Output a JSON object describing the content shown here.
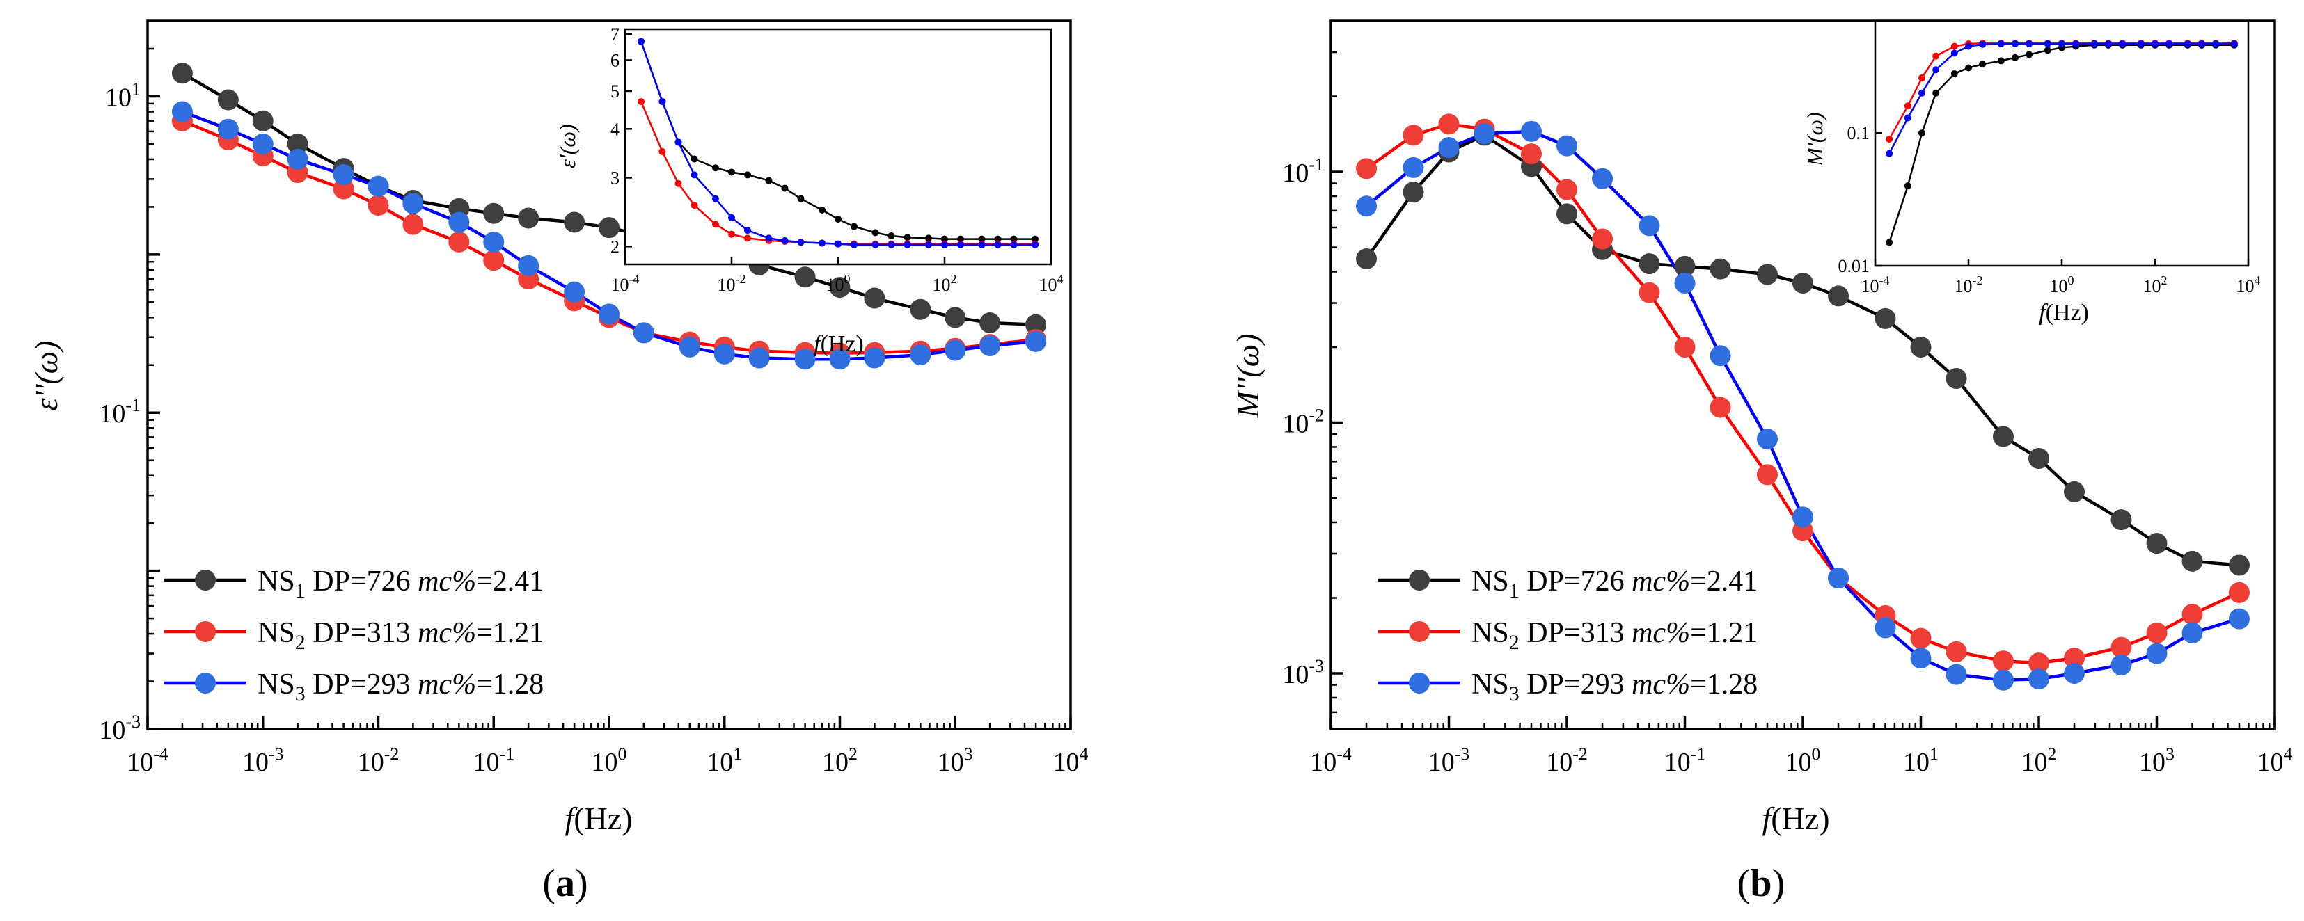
{
  "colors": {
    "ns1": "#3f3f3f",
    "ns2": "#ef3e36",
    "ns3": "#2f6fe0",
    "ns1_line": "#000000",
    "ns2_line": "#ff0000",
    "ns3_line": "#0000ff"
  },
  "chart_data": [
    {
      "id": "a",
      "type": "line",
      "panel_label": "a",
      "xlabel_italic": "f",
      "xlabel_rest": "(Hz)",
      "ylabel": "ε''(ω)",
      "xscale": "log",
      "yscale": "log",
      "xlim": [
        0.0001,
        10000
      ],
      "ylim": [
        0.001,
        30
      ],
      "x_ticks": [
        {
          "base": "10",
          "exp": "-4"
        },
        {
          "base": "10",
          "exp": "-3"
        },
        {
          "base": "10",
          "exp": "-2"
        },
        {
          "base": "10",
          "exp": "-1"
        },
        {
          "base": "10",
          "exp": "0"
        },
        {
          "base": "10",
          "exp": "1"
        },
        {
          "base": "10",
          "exp": "2"
        },
        {
          "base": "10",
          "exp": "3"
        },
        {
          "base": "10",
          "exp": "4"
        }
      ],
      "y_ticks": [
        {
          "base": "10",
          "exp": "-3"
        },
        {
          "base": "10",
          "exp": "-1"
        },
        {
          "base": "10",
          "exp": "1"
        }
      ],
      "legend_position": "bottom-left",
      "series": [
        {
          "name": "NS",
          "sub": "1",
          "label_mid": " DP=726 ",
          "label_ital": "mc%",
          "label_end": "=2.41",
          "x": [
            0.0002,
            0.0005,
            0.001,
            0.002,
            0.005,
            0.01,
            0.02,
            0.05,
            0.1,
            0.2,
            0.5,
            1,
            2,
            5,
            10,
            20,
            50,
            100,
            200,
            500,
            1000,
            2000,
            5000
          ],
          "values": [
            14,
            9.5,
            7,
            5,
            3.5,
            2.7,
            2.2,
            1.95,
            1.82,
            1.7,
            1.6,
            1.48,
            1.32,
            1.16,
            1.0,
            0.86,
            0.72,
            0.62,
            0.53,
            0.45,
            0.4,
            0.37,
            0.36
          ]
        },
        {
          "name": "NS",
          "sub": "2",
          "label_mid": " DP=313 ",
          "label_ital": "mc%",
          "label_end": "=1.21",
          "x": [
            0.0002,
            0.0005,
            0.001,
            0.002,
            0.005,
            0.01,
            0.02,
            0.05,
            0.1,
            0.2,
            0.5,
            1,
            2,
            5,
            10,
            20,
            50,
            100,
            200,
            500,
            1000,
            2000,
            5000
          ],
          "values": [
            7,
            5.3,
            4.2,
            3.3,
            2.6,
            2.05,
            1.55,
            1.2,
            0.92,
            0.7,
            0.51,
            0.4,
            0.32,
            0.28,
            0.26,
            0.245,
            0.24,
            0.238,
            0.24,
            0.245,
            0.255,
            0.27,
            0.29
          ]
        },
        {
          "name": "NS",
          "sub": "3",
          "label_mid": " DP=293 ",
          "label_ital": "mc%",
          "label_end": "=1.28",
          "x": [
            0.0002,
            0.0005,
            0.001,
            0.002,
            0.005,
            0.01,
            0.02,
            0.05,
            0.1,
            0.2,
            0.5,
            1,
            2,
            5,
            10,
            20,
            50,
            100,
            200,
            500,
            1000,
            2000,
            5000
          ],
          "values": [
            8,
            6.2,
            5,
            4,
            3.2,
            2.7,
            2.1,
            1.6,
            1.2,
            0.85,
            0.58,
            0.42,
            0.32,
            0.26,
            0.235,
            0.222,
            0.218,
            0.218,
            0.222,
            0.232,
            0.248,
            0.265,
            0.282
          ]
        }
      ],
      "inset": {
        "type": "line",
        "xlabel_italic": "f",
        "xlabel_rest": "(Hz)",
        "ylabel": "ε'(ω)",
        "xlim": [
          0.0001,
          10000
        ],
        "ylim": [
          1.8,
          7.2
        ],
        "x_ticks": [
          {
            "base": "10",
            "exp": "-4"
          },
          {
            "base": "10",
            "exp": "-2"
          },
          {
            "base": "10",
            "exp": "0"
          },
          {
            "base": "10",
            "exp": "2"
          },
          {
            "base": "10",
            "exp": "4"
          }
        ],
        "y_ticks": [
          "2",
          "3",
          "4",
          "5",
          "6",
          "7"
        ],
        "series": [
          {
            "x": [
              0.0002,
              0.0005,
              0.001,
              0.002,
              0.005,
              0.01,
              0.02,
              0.05,
              0.1,
              0.2,
              0.5,
              1,
              2,
              5,
              10,
              20,
              50,
              100,
              200,
              500,
              1000,
              2000,
              5000
            ],
            "values": [
              6.7,
              4.7,
              3.7,
              3.35,
              3.18,
              3.1,
              3.05,
              2.95,
              2.82,
              2.65,
              2.48,
              2.35,
              2.25,
              2.17,
              2.13,
              2.11,
              2.1,
              2.09,
              2.09,
              2.09,
              2.09,
              2.09,
              2.09
            ]
          },
          {
            "x": [
              0.0002,
              0.0005,
              0.001,
              0.002,
              0.005,
              0.01,
              0.02,
              0.05,
              0.1,
              0.2,
              0.5,
              1,
              2,
              5,
              10,
              20,
              50,
              100,
              200,
              500,
              1000,
              2000,
              5000
            ],
            "values": [
              4.7,
              3.5,
              2.9,
              2.55,
              2.28,
              2.15,
              2.1,
              2.07,
              2.06,
              2.05,
              2.04,
              2.03,
              2.03,
              2.03,
              2.03,
              2.03,
              2.03,
              2.03,
              2.03,
              2.03,
              2.03,
              2.03,
              2.03
            ]
          },
          {
            "x": [
              0.0002,
              0.0005,
              0.001,
              0.002,
              0.005,
              0.01,
              0.02,
              0.05,
              0.1,
              0.2,
              0.5,
              1,
              2,
              5,
              10,
              20,
              50,
              100,
              200,
              500,
              1000,
              2000,
              5000
            ],
            "values": [
              6.7,
              4.7,
              3.7,
              3.05,
              2.65,
              2.37,
              2.2,
              2.1,
              2.07,
              2.05,
              2.04,
              2.03,
              2.02,
              2.02,
              2.02,
              2.02,
              2.02,
              2.02,
              2.02,
              2.02,
              2.02,
              2.02,
              2.02
            ]
          }
        ]
      }
    },
    {
      "id": "b",
      "type": "line",
      "panel_label": "b",
      "xlabel_italic": "f",
      "xlabel_rest": "(Hz)",
      "ylabel": "M''(ω)",
      "xscale": "log",
      "yscale": "log",
      "xlim": [
        0.0001,
        10000
      ],
      "ylim": [
        0.0006,
        0.4
      ],
      "x_ticks": [
        {
          "base": "10",
          "exp": "-4"
        },
        {
          "base": "10",
          "exp": "-3"
        },
        {
          "base": "10",
          "exp": "-2"
        },
        {
          "base": "10",
          "exp": "-1"
        },
        {
          "base": "10",
          "exp": "0"
        },
        {
          "base": "10",
          "exp": "1"
        },
        {
          "base": "10",
          "exp": "2"
        },
        {
          "base": "10",
          "exp": "3"
        },
        {
          "base": "10",
          "exp": "4"
        }
      ],
      "y_ticks": [
        {
          "base": "10",
          "exp": "-3"
        },
        {
          "base": "10",
          "exp": "-2"
        },
        {
          "base": "10",
          "exp": "-1"
        }
      ],
      "legend_position": "bottom-left",
      "series": [
        {
          "name": "NS",
          "sub": "1",
          "label_mid": " DP=726 ",
          "label_ital": "mc%",
          "label_end": "=2.41",
          "x": [
            0.0002,
            0.0005,
            0.001,
            0.002,
            0.005,
            0.01,
            0.02,
            0.05,
            0.1,
            0.2,
            0.5,
            1,
            2,
            5,
            10,
            20,
            50,
            100,
            200,
            500,
            1000,
            2000,
            5000
          ],
          "values": [
            0.045,
            0.083,
            0.12,
            0.14,
            0.105,
            0.068,
            0.049,
            0.043,
            0.042,
            0.041,
            0.039,
            0.036,
            0.032,
            0.026,
            0.02,
            0.015,
            0.0088,
            0.0072,
            0.0053,
            0.0041,
            0.0033,
            0.0028,
            0.0027
          ]
        },
        {
          "name": "NS",
          "sub": "2",
          "label_mid": " DP=313 ",
          "label_ital": "mc%",
          "label_end": "=1.21",
          "x": [
            0.0002,
            0.0005,
            0.001,
            0.002,
            0.005,
            0.01,
            0.02,
            0.05,
            0.1,
            0.2,
            0.5,
            1,
            2,
            5,
            10,
            20,
            50,
            100,
            200,
            500,
            1000,
            2000,
            5000
          ],
          "values": [
            0.103,
            0.14,
            0.155,
            0.148,
            0.118,
            0.085,
            0.054,
            0.033,
            0.02,
            0.0115,
            0.0062,
            0.0037,
            0.0024,
            0.0017,
            0.00138,
            0.00122,
            0.00112,
            0.0011,
            0.00115,
            0.00127,
            0.00145,
            0.00172,
            0.0021
          ]
        },
        {
          "name": "NS",
          "sub": "3",
          "label_mid": " DP=293 ",
          "label_ital": "mc%",
          "label_end": "=1.28",
          "x": [
            0.0002,
            0.0005,
            0.001,
            0.002,
            0.005,
            0.01,
            0.02,
            0.05,
            0.1,
            0.2,
            0.5,
            1,
            2,
            5,
            10,
            20,
            50,
            100,
            200,
            500,
            1000,
            2000,
            5000
          ],
          "values": [
            0.073,
            0.104,
            0.125,
            0.142,
            0.145,
            0.127,
            0.094,
            0.061,
            0.036,
            0.0185,
            0.0086,
            0.0042,
            0.0024,
            0.00152,
            0.00115,
            0.00099,
            0.00094,
            0.00095,
            0.001,
            0.00108,
            0.0012,
            0.00145,
            0.00165
          ]
        }
      ],
      "inset": {
        "type": "line",
        "xlabel_italic": "f",
        "xlabel_rest": "(Hz)",
        "ylabel": "M'(ω)",
        "xlim": [
          0.0001,
          10000
        ],
        "ylim": [
          0.01,
          0.7
        ],
        "x_ticks": [
          {
            "base": "10",
            "exp": "-4"
          },
          {
            "base": "10",
            "exp": "-2"
          },
          {
            "base": "10",
            "exp": "0"
          },
          {
            "base": "10",
            "exp": "2"
          },
          {
            "base": "10",
            "exp": "4"
          }
        ],
        "y_ticks": [
          "0.01",
          "0.1"
        ],
        "series": [
          {
            "x": [
              0.0002,
              0.0005,
              0.001,
              0.002,
              0.005,
              0.01,
              0.02,
              0.05,
              0.1,
              0.2,
              0.5,
              1,
              2,
              5,
              10,
              20,
              50,
              100,
              200,
              500,
              1000,
              2000,
              5000
            ],
            "values": [
              0.015,
              0.04,
              0.1,
              0.2,
              0.28,
              0.31,
              0.33,
              0.35,
              0.37,
              0.39,
              0.42,
              0.44,
              0.45,
              0.46,
              0.46,
              0.46,
              0.46,
              0.46,
              0.46,
              0.46,
              0.46,
              0.46,
              0.46
            ]
          },
          {
            "x": [
              0.0002,
              0.0005,
              0.001,
              0.002,
              0.005,
              0.01,
              0.02,
              0.05,
              0.1,
              0.2,
              0.5,
              1,
              2,
              5,
              10,
              20,
              50,
              100,
              200,
              500,
              1000,
              2000,
              5000
            ],
            "values": [
              0.09,
              0.16,
              0.26,
              0.38,
              0.45,
              0.47,
              0.475,
              0.475,
              0.475,
              0.475,
              0.475,
              0.475,
              0.475,
              0.475,
              0.475,
              0.475,
              0.475,
              0.475,
              0.475,
              0.475,
              0.475,
              0.475,
              0.475
            ]
          },
          {
            "x": [
              0.0002,
              0.0005,
              0.001,
              0.002,
              0.005,
              0.01,
              0.02,
              0.05,
              0.1,
              0.2,
              0.5,
              1,
              2,
              5,
              10,
              20,
              50,
              100,
              200,
              500,
              1000,
              2000,
              5000
            ],
            "values": [
              0.07,
              0.13,
              0.2,
              0.3,
              0.4,
              0.45,
              0.465,
              0.47,
              0.47,
              0.47,
              0.47,
              0.47,
              0.47,
              0.47,
              0.47,
              0.47,
              0.47,
              0.47,
              0.47,
              0.47,
              0.47,
              0.47,
              0.47
            ]
          }
        ]
      }
    }
  ]
}
